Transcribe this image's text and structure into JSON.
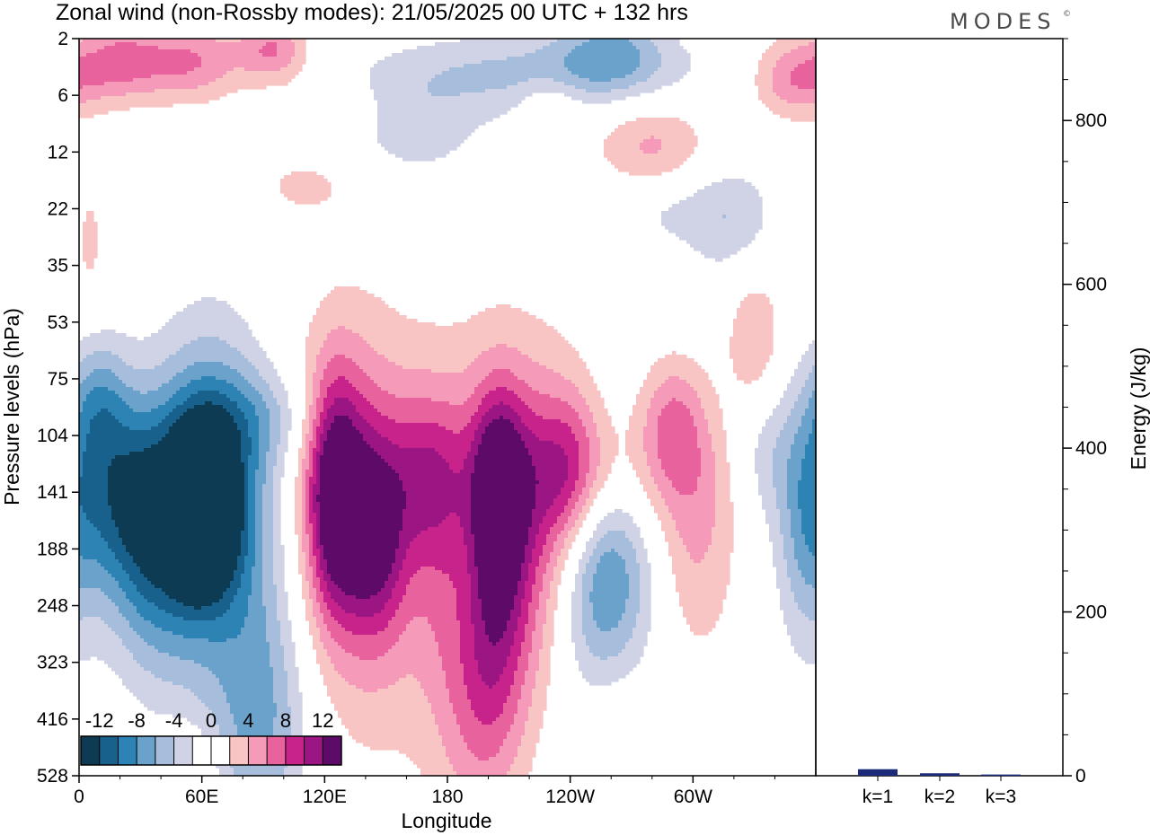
{
  "chart_data": {
    "type": "heatmap",
    "title": "Zonal wind (non-Rossby modes):  21/05/2025  00 UTC  + 132 hrs",
    "logo": "MODES",
    "xlabel": "Longitude",
    "ylabel": "Pressure levels (hPa)",
    "x_ticks": [
      "0",
      "60E",
      "120E",
      "180",
      "120W",
      "60W"
    ],
    "y_ticks": [
      "2",
      "6",
      "12",
      "22",
      "35",
      "53",
      "75",
      "104",
      "141",
      "188",
      "248",
      "323",
      "416",
      "528"
    ],
    "colorbar": {
      "labels": [
        "-12",
        "-8",
        "-4",
        "0",
        "4",
        "8",
        "12"
      ],
      "colors": [
        "#0e3b54",
        "#17618c",
        "#2e83b5",
        "#6aa2cc",
        "#a6bedb",
        "#d0d2e6",
        "#ffffff",
        "#ffffff",
        "#f9c4c4",
        "#f59ab8",
        "#e8639e",
        "#c7238a",
        "#9b1583",
        "#5e0a69"
      ]
    },
    "blobs": [
      {
        "lon": 60,
        "lev": 8.3,
        "rlon": 10,
        "rlev": 0.9,
        "v": -14
      },
      {
        "lon": 55,
        "lev": 8.3,
        "rlon": 26,
        "rlev": 1.5,
        "v": -9
      },
      {
        "lon": 20,
        "lev": 8.0,
        "rlon": 18,
        "rlev": 1.2,
        "v": -8
      },
      {
        "lon": 65,
        "lev": 7.5,
        "rlon": 18,
        "rlev": 1.8,
        "v": -6
      },
      {
        "lon": 10,
        "lev": 6.4,
        "rlon": 10,
        "rlev": 0.8,
        "v": -5
      },
      {
        "lon": 90,
        "lev": 6.7,
        "rlon": 20,
        "rlev": 0.6,
        "v": -3.5
      },
      {
        "lon": 35,
        "lev": 9.8,
        "rlon": 15,
        "rlev": 1.2,
        "v": -3.5
      },
      {
        "lon": 90,
        "lev": 12.0,
        "rlon": 15,
        "rlev": 1.6,
        "v": -4.5
      },
      {
        "lon": 75,
        "lev": 11.5,
        "rlon": 25,
        "rlev": 2.0,
        "v": -3
      },
      {
        "lon": 255,
        "lev": 9.5,
        "rlon": 15,
        "rlev": 1.3,
        "v": -7
      },
      {
        "lon": 260,
        "lev": 9.8,
        "rlon": 24,
        "rlev": 2.4,
        "v": -4
      },
      {
        "lon": 355,
        "lev": 8.6,
        "rlon": 10,
        "rlev": 1.6,
        "v": -5
      },
      {
        "lon": 335,
        "lev": 7.3,
        "rlon": 12,
        "rlev": 0.9,
        "v": -3.5
      },
      {
        "lon": 190,
        "lev": 9.4,
        "rlon": 8,
        "rlev": 1.8,
        "v": -2.5
      },
      {
        "lon": 225,
        "lev": 0.6,
        "rlon": 55,
        "rlev": 0.5,
        "v": -4.5
      },
      {
        "lon": 260,
        "lev": 0.2,
        "rlon": 18,
        "rlev": 0.5,
        "v": -5
      },
      {
        "lon": 165,
        "lev": 1.6,
        "rlon": 25,
        "rlev": 0.7,
        "v": -3
      },
      {
        "lon": 320,
        "lev": 3.3,
        "rlon": 15,
        "rlev": 0.8,
        "v": -3
      },
      {
        "lon": 290,
        "lev": 3.0,
        "rlon": 25,
        "rlev": 0.5,
        "v": -2.5
      },
      {
        "lon": 125,
        "lev": 8.0,
        "rlon": 9,
        "rlev": 1.4,
        "v": 10
      },
      {
        "lon": 130,
        "lev": 8.1,
        "rlon": 18,
        "rlev": 2.0,
        "v": 6
      },
      {
        "lon": 145,
        "lev": 8.8,
        "rlon": 10,
        "rlev": 1.2,
        "v": 7
      },
      {
        "lon": 150,
        "lev": 9.0,
        "rlon": 28,
        "rlev": 2.8,
        "v": 3.5
      },
      {
        "lon": 170,
        "lev": 7.7,
        "rlon": 14,
        "rlev": 1.0,
        "v": 5
      },
      {
        "lon": 205,
        "lev": 8.0,
        "rlon": 9,
        "rlev": 1.2,
        "v": 9
      },
      {
        "lon": 210,
        "lev": 8.2,
        "rlon": 28,
        "rlev": 1.8,
        "v": 6
      },
      {
        "lon": 220,
        "lev": 8.7,
        "rlon": 30,
        "rlev": 2.4,
        "v": 3.5
      },
      {
        "lon": 200,
        "lev": 10.7,
        "rlon": 15,
        "rlev": 1.5,
        "v": 5
      },
      {
        "lon": 195,
        "lev": 12.0,
        "rlon": 15,
        "rlev": 1.7,
        "v": 3.5
      },
      {
        "lon": 265,
        "lev": 12.2,
        "rlon": 16,
        "rlev": 1.3,
        "v": 3.2
      },
      {
        "lon": 240,
        "lev": 7.6,
        "rlon": 12,
        "rlev": 1.0,
        "v": 5
      },
      {
        "lon": 290,
        "lev": 6.7,
        "rlon": 12,
        "rlev": 0.8,
        "v": 5.5
      },
      {
        "lon": 300,
        "lev": 9.0,
        "rlon": 15,
        "rlev": 1.5,
        "v": 4.5
      },
      {
        "lon": 270,
        "lev": 7.7,
        "rlon": 40,
        "rlev": 0.8,
        "v": 3
      },
      {
        "lon": 20,
        "lev": 0.4,
        "rlon": 15,
        "rlev": 0.5,
        "v": 6
      },
      {
        "lon": 55,
        "lev": 0.4,
        "rlon": 18,
        "rlev": 0.5,
        "v": 6
      },
      {
        "lon": 95,
        "lev": 0.2,
        "rlon": 12,
        "rlev": 0.4,
        "v": 6
      },
      {
        "lon": 350,
        "lev": 0.7,
        "rlon": 15,
        "rlev": 0.5,
        "v": 6
      },
      {
        "lon": 280,
        "lev": 1.9,
        "rlon": 20,
        "rlev": 0.6,
        "v": 4.5
      },
      {
        "lon": 330,
        "lev": 5.3,
        "rlon": 10,
        "rlev": 1.0,
        "v": 4
      },
      {
        "lon": 55,
        "lev": 13.0,
        "rlon": 12,
        "rlev": 0.7,
        "v": 3
      },
      {
        "lon": 5,
        "lev": 3.6,
        "rlon": 6,
        "rlev": 0.9,
        "v": 2.5
      },
      {
        "lon": 110,
        "lev": 2.6,
        "rlon": 18,
        "rlev": 0.4,
        "v": 2.5
      },
      {
        "lon": 120,
        "lev": 1.2,
        "rlon": 15,
        "rlev": 0.3,
        "v": 2.5
      },
      {
        "lon": 230,
        "lev": 1.1,
        "rlon": 10,
        "rlev": 0.3,
        "v": 2.5
      }
    ],
    "energy_panel": {
      "ylabel": "Energy (J/kg)",
      "yticks": [
        "0",
        "200",
        "400",
        "600",
        "800"
      ],
      "ylim": [
        0,
        900
      ],
      "categories": [
        "k=1",
        "k=2",
        "k=3"
      ],
      "values": [
        8,
        3,
        1.5
      ],
      "bar_color": "#1d2a7a"
    }
  }
}
